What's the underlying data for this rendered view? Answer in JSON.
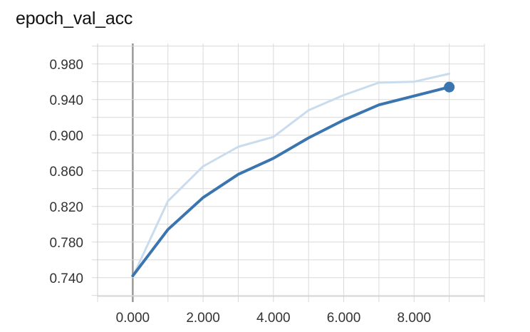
{
  "chart_data": {
    "type": "line",
    "title": "epoch_val_acc",
    "xlabel": "",
    "ylabel": "",
    "xlim": [
      -1.0,
      10.0
    ],
    "ylim": [
      0.719,
      1.003
    ],
    "xticks": [
      0,
      2,
      4,
      6,
      8
    ],
    "xtick_labels": [
      "0.000",
      "2.000",
      "4.000",
      "6.000",
      "8.000"
    ],
    "yticks": [
      0.74,
      0.78,
      0.82,
      0.86,
      0.9,
      0.94,
      0.98
    ],
    "ytick_labels": [
      "0.740",
      "0.780",
      "0.820",
      "0.860",
      "0.900",
      "0.940",
      "0.980"
    ],
    "grid": true,
    "series": [
      {
        "role": "raw",
        "x": [
          0,
          1,
          2,
          3,
          4,
          5,
          6,
          7,
          8,
          9
        ],
        "values": [
          0.741,
          0.826,
          0.865,
          0.887,
          0.898,
          0.928,
          0.945,
          0.959,
          0.96,
          0.969
        ],
        "color": "#c9dcee"
      },
      {
        "role": "smoothed",
        "x": [
          0,
          1,
          2,
          3,
          4,
          5,
          6,
          7,
          8,
          9
        ],
        "values": [
          0.742,
          0.794,
          0.83,
          0.856,
          0.874,
          0.897,
          0.917,
          0.934,
          0.944,
          0.954
        ],
        "color": "#3a75b0"
      }
    ]
  }
}
